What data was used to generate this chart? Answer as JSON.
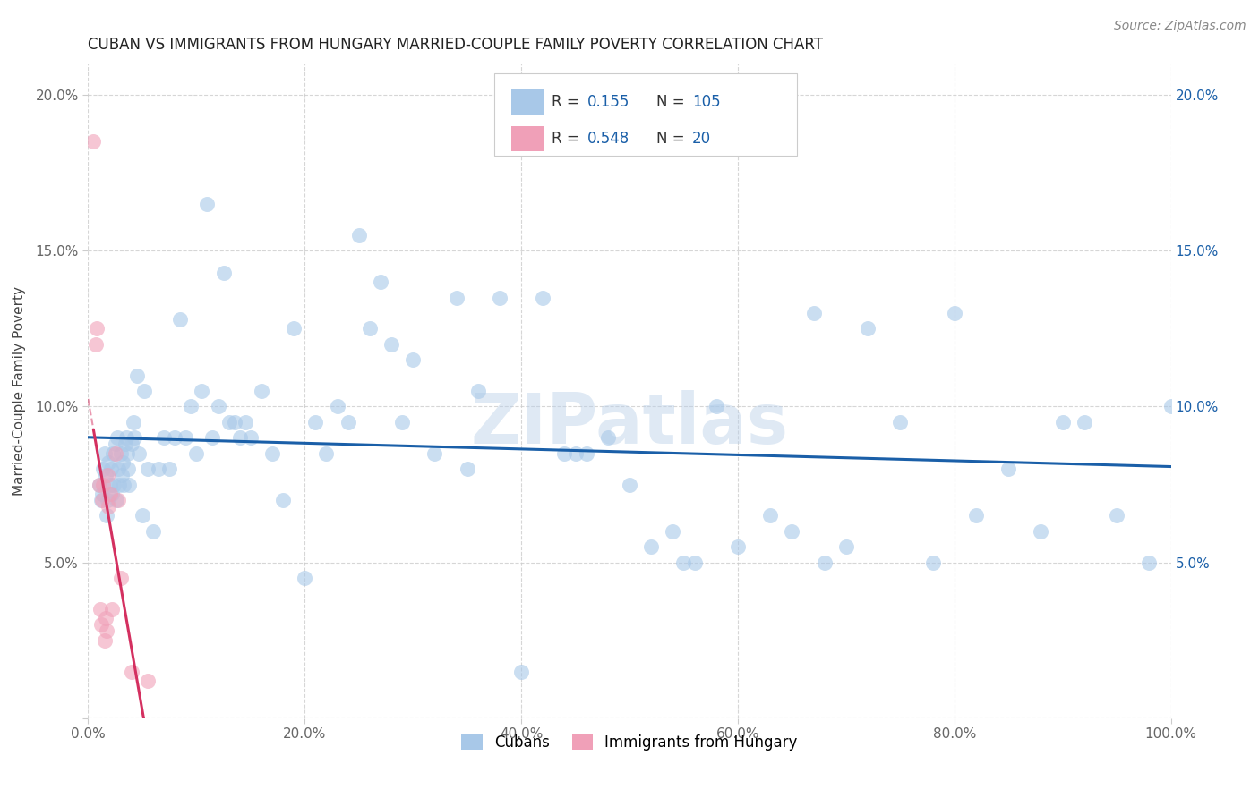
{
  "title": "CUBAN VS IMMIGRANTS FROM HUNGARY MARRIED-COUPLE FAMILY POVERTY CORRELATION CHART",
  "source": "Source: ZipAtlas.com",
  "ylabel": "Married-Couple Family Poverty",
  "cubans_R": 0.155,
  "cubans_N": 105,
  "hungary_R": 0.548,
  "hungary_N": 20,
  "xlim": [
    0,
    100
  ],
  "ylim": [
    0,
    21
  ],
  "x_ticks": [
    0,
    20,
    40,
    60,
    80,
    100
  ],
  "y_ticks": [
    0,
    5,
    10,
    15,
    20
  ],
  "x_tick_labels": [
    "0.0%",
    "20.0%",
    "40.0%",
    "60.0%",
    "80.0%",
    "100.0%"
  ],
  "y_tick_labels_left": [
    "",
    "5.0%",
    "10.0%",
    "15.0%",
    "20.0%"
  ],
  "y_tick_labels_right": [
    "",
    "5.0%",
    "10.0%",
    "15.0%",
    "20.0%"
  ],
  "cubans_color": "#a8c8e8",
  "hungary_color": "#f0a0b8",
  "cubans_line_color": "#1a5fa8",
  "hungary_line_color": "#d43060",
  "legend_cubans_label": "Cubans",
  "legend_hungary_label": "Immigrants from Hungary",
  "watermark": "ZIPatlas",
  "cubans_x": [
    1.0,
    1.2,
    1.3,
    1.4,
    1.5,
    1.6,
    1.7,
    1.8,
    1.9,
    2.0,
    2.1,
    2.2,
    2.3,
    2.4,
    2.5,
    2.6,
    2.7,
    2.8,
    2.9,
    3.0,
    3.1,
    3.2,
    3.3,
    3.4,
    3.5,
    3.6,
    3.7,
    3.8,
    4.0,
    4.2,
    4.3,
    4.5,
    4.7,
    5.0,
    5.2,
    5.5,
    6.0,
    6.5,
    7.0,
    7.5,
    8.0,
    8.5,
    9.0,
    9.5,
    10.0,
    10.5,
    11.0,
    11.5,
    12.0,
    12.5,
    13.0,
    13.5,
    14.0,
    14.5,
    15.0,
    16.0,
    17.0,
    18.0,
    19.0,
    20.0,
    21.0,
    22.0,
    23.0,
    24.0,
    25.0,
    26.0,
    27.0,
    28.0,
    29.0,
    30.0,
    32.0,
    34.0,
    35.0,
    36.0,
    38.0,
    40.0,
    42.0,
    44.0,
    46.0,
    48.0,
    50.0,
    52.0,
    54.0,
    56.0,
    58.0,
    60.0,
    63.0,
    65.0,
    67.0,
    70.0,
    72.0,
    75.0,
    78.0,
    82.0,
    85.0,
    88.0,
    90.0,
    92.0,
    95.0,
    98.0,
    100.0,
    55.0,
    45.0,
    68.0,
    80.0
  ],
  "cubans_y": [
    7.5,
    7.0,
    7.2,
    8.0,
    8.5,
    7.8,
    6.5,
    7.0,
    8.2,
    7.5,
    8.0,
    7.2,
    8.5,
    7.5,
    8.8,
    7.0,
    9.0,
    8.0,
    7.5,
    8.5,
    7.8,
    8.2,
    7.5,
    8.8,
    9.0,
    8.5,
    8.0,
    7.5,
    8.8,
    9.5,
    9.0,
    11.0,
    8.5,
    6.5,
    10.5,
    8.0,
    6.0,
    8.0,
    9.0,
    8.0,
    9.0,
    12.8,
    9.0,
    10.0,
    8.5,
    10.5,
    16.5,
    9.0,
    10.0,
    14.3,
    9.5,
    9.5,
    9.0,
    9.5,
    9.0,
    10.5,
    8.5,
    7.0,
    12.5,
    4.5,
    9.5,
    8.5,
    10.0,
    9.5,
    15.5,
    12.5,
    14.0,
    12.0,
    9.5,
    11.5,
    8.5,
    13.5,
    8.0,
    10.5,
    13.5,
    1.5,
    13.5,
    8.5,
    8.5,
    9.0,
    7.5,
    5.5,
    6.0,
    5.0,
    10.0,
    5.5,
    6.5,
    6.0,
    13.0,
    5.5,
    12.5,
    9.5,
    5.0,
    6.5,
    8.0,
    6.0,
    9.5,
    9.5,
    6.5,
    5.0,
    10.0,
    5.0,
    8.5,
    5.0,
    13.0
  ],
  "hungary_x": [
    0.5,
    0.7,
    0.8,
    1.0,
    1.1,
    1.2,
    1.3,
    1.4,
    1.5,
    1.6,
    1.7,
    1.8,
    1.9,
    2.0,
    2.2,
    2.5,
    2.8,
    3.0,
    4.0,
    5.5
  ],
  "hungary_y": [
    18.5,
    12.0,
    12.5,
    7.5,
    3.5,
    3.0,
    7.0,
    7.5,
    2.5,
    3.2,
    2.8,
    7.8,
    6.8,
    7.2,
    3.5,
    8.5,
    7.0,
    4.5,
    1.5,
    1.2
  ]
}
